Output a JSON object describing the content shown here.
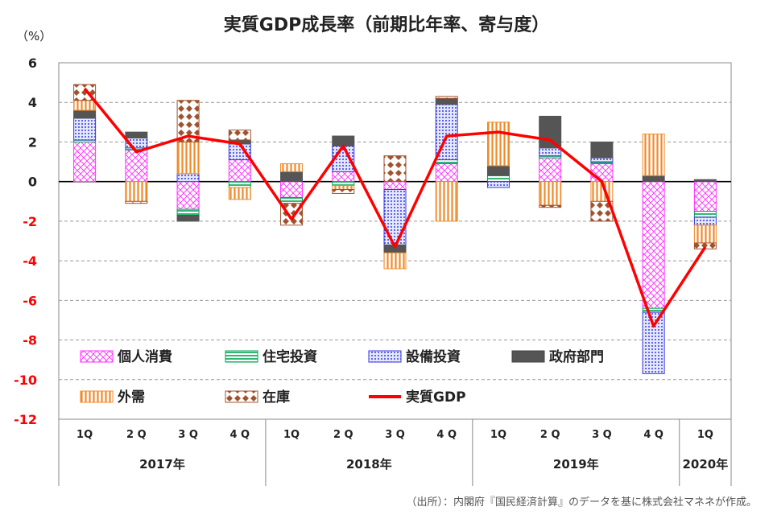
{
  "colors": {
    "consumption": "#ff33ff",
    "housing": "#00a550",
    "equipment": "#3a3ae0",
    "government": "#555555",
    "external": "#f08a2a",
    "inventory": "#a0522d",
    "gdp": "#ff0000",
    "negative_tick": "#ff0000",
    "positive_tick": "#222222"
  },
  "chart_data": {
    "type": "bar",
    "subtype": "stacked bar with line",
    "title": "実質GDP成長率（前期比年率、寄与度）",
    "ylabel": "（%）",
    "ylim": [
      -12,
      6
    ],
    "yticks": [
      "6",
      "4",
      "2",
      "0",
      "-2",
      "-4",
      "-6",
      "-8",
      "-10",
      "-12"
    ],
    "grid": true,
    "categories": [
      "1Q",
      "2 Q",
      "3 Q",
      "4 Q",
      "1Q",
      "2 Q",
      "3 Q",
      "4 Q",
      "1Q",
      "2 Q",
      "3 Q",
      "4 Q",
      "1Q"
    ],
    "years": [
      {
        "label": "2017年",
        "quarters": 4
      },
      {
        "label": "2018年",
        "quarters": 4
      },
      {
        "label": "2019年",
        "quarters": 4
      },
      {
        "label": "2020年",
        "quarters": 1
      }
    ],
    "series": [
      {
        "key": "consumption",
        "name": "個人消費",
        "values": [
          2.0,
          1.6,
          -1.4,
          1.1,
          -0.8,
          0.5,
          -0.4,
          0.9,
          0.0,
          1.2,
          0.9,
          -6.4,
          -1.5
        ]
      },
      {
        "key": "housing",
        "name": "住宅投資",
        "values": [
          0.1,
          0.1,
          -0.3,
          -0.3,
          -0.3,
          -0.2,
          0.0,
          0.2,
          0.3,
          0.1,
          0.1,
          -0.2,
          -0.3
        ]
      },
      {
        "key": "equipment",
        "name": "設備投資",
        "values": [
          1.1,
          0.5,
          0.4,
          0.8,
          0.0,
          1.3,
          -2.8,
          2.8,
          -0.3,
          0.4,
          0.2,
          -3.1,
          -0.4
        ]
      },
      {
        "key": "government",
        "name": "政府部門",
        "values": [
          0.4,
          0.3,
          -0.3,
          0.2,
          0.5,
          0.5,
          -0.4,
          0.3,
          0.5,
          1.6,
          0.8,
          0.3,
          0.1
        ]
      },
      {
        "key": "external",
        "name": "外需",
        "values": [
          0.5,
          -1.0,
          1.6,
          -0.6,
          0.4,
          -0.2,
          -0.8,
          -2.0,
          2.2,
          -1.2,
          -1.0,
          2.1,
          -0.9
        ]
      },
      {
        "key": "inventory",
        "name": "在庫",
        "values": [
          0.8,
          -0.1,
          2.1,
          0.5,
          -1.1,
          -0.2,
          1.3,
          0.1,
          0.0,
          -0.1,
          -1.0,
          0.0,
          -0.3
        ]
      }
    ],
    "line": {
      "key": "gdp",
      "name": "実質GDP",
      "values": [
        4.7,
        1.5,
        2.3,
        1.9,
        -1.9,
        1.8,
        -3.3,
        2.3,
        2.5,
        2.1,
        0.0,
        -7.3,
        -3.3
      ]
    },
    "legend_position": "bottom-left inside plot"
  },
  "source_note": "（出所）：内閣府『国民経済計算』のデータを基に株式会社マネネが作成。"
}
